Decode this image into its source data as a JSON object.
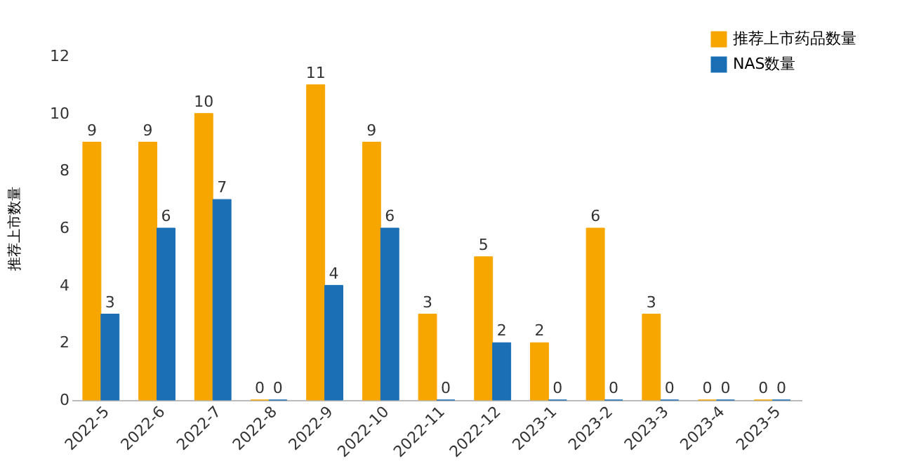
{
  "chart_data": {
    "type": "bar",
    "ylabel": "推荐上市数量",
    "categories": [
      "2022-5",
      "2022-6",
      "2022-7",
      "2022-8",
      "2022-9",
      "2022-10",
      "2022-11",
      "2022-12",
      "2023-1",
      "2023-2",
      "2023-3",
      "2023-4",
      "2023-5"
    ],
    "series": [
      {
        "name": "推荐上市药品数量",
        "color": "#f7a600",
        "values": [
          9,
          9,
          10,
          0,
          11,
          9,
          3,
          5,
          2,
          6,
          3,
          0,
          0
        ]
      },
      {
        "name": "NAS数量",
        "color": "#1a6fb5",
        "values": [
          3,
          6,
          7,
          0,
          4,
          6,
          0,
          2,
          0,
          0,
          0,
          0,
          0
        ]
      }
    ],
    "ylim": [
      0,
      12
    ],
    "yticks": [
      0,
      2,
      4,
      6,
      8,
      10,
      12
    ],
    "grid": false,
    "legend": "top right",
    "data_labels": true
  }
}
